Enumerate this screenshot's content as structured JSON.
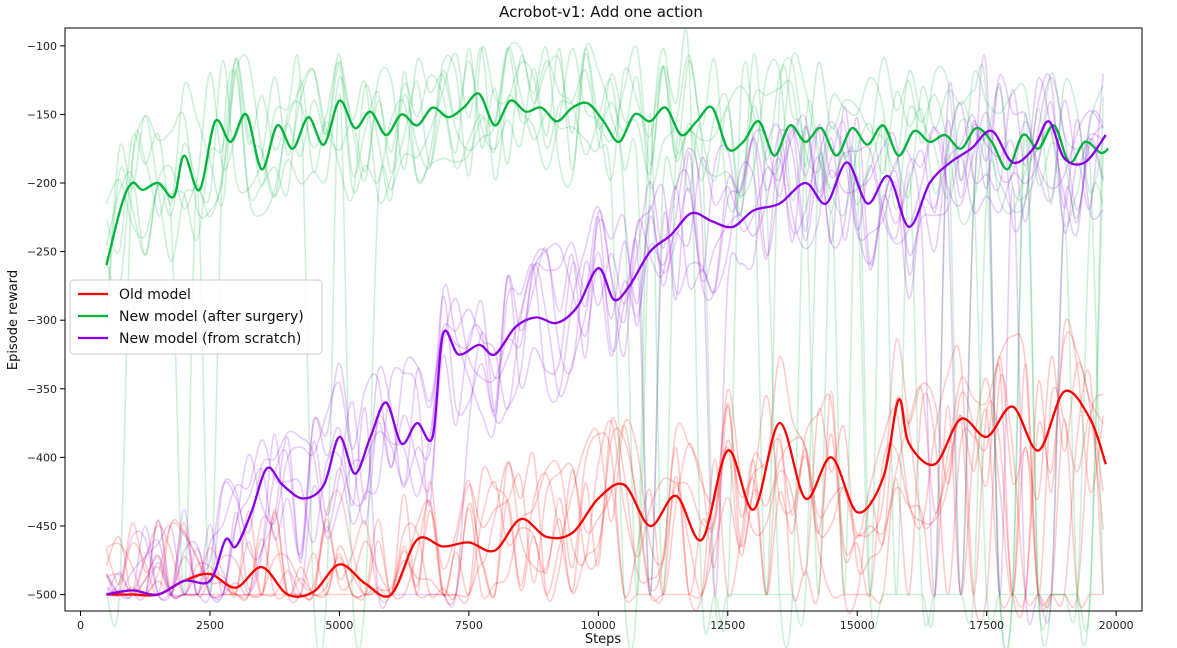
{
  "chart_data": {
    "type": "line",
    "title": "Acrobot-v1: Add one action",
    "xlabel": "Steps",
    "ylabel": "Episode reward",
    "xlim": [
      -300,
      20500
    ],
    "ylim": [
      -512,
      -87
    ],
    "xticks": [
      0,
      2500,
      5000,
      7500,
      10000,
      12500,
      15000,
      17500,
      20000
    ],
    "yticks": [
      -100,
      -150,
      -200,
      -250,
      -300,
      -350,
      -400,
      -450,
      -500
    ],
    "grid": false,
    "legend_position": "center-left",
    "series": [
      {
        "name": "Old model",
        "color": "#ff0000",
        "x": [
          500,
          1000,
          1500,
          2000,
          2500,
          3000,
          3500,
          4000,
          4500,
          5000,
          5500,
          6000,
          6500,
          7000,
          7500,
          8000,
          8500,
          9000,
          9500,
          10000,
          10500,
          11000,
          11500,
          12000,
          12500,
          13000,
          13500,
          14000,
          14500,
          15000,
          15500,
          15800,
          16000,
          16500,
          17000,
          17500,
          18000,
          18500,
          19000,
          19500,
          19800
        ],
        "values": [
          -500,
          -500,
          -500,
          -490,
          -485,
          -495,
          -480,
          -500,
          -498,
          -478,
          -492,
          -500,
          -460,
          -465,
          -462,
          -468,
          -445,
          -458,
          -455,
          -430,
          -420,
          -450,
          -428,
          -460,
          -395,
          -438,
          -375,
          -430,
          -400,
          -440,
          -415,
          -358,
          -390,
          -405,
          -372,
          -385,
          -363,
          -395,
          -352,
          -372,
          -405
        ]
      },
      {
        "name": "New model (after surgery)",
        "color": "#00b33c",
        "x": [
          500,
          800,
          1000,
          1200,
          1500,
          1800,
          2000,
          2300,
          2600,
          2900,
          3200,
          3500,
          3800,
          4100,
          4400,
          4700,
          5000,
          5300,
          5600,
          5900,
          6200,
          6500,
          6800,
          7100,
          7400,
          7700,
          8000,
          8300,
          8600,
          8900,
          9200,
          9500,
          9800,
          10100,
          10400,
          10700,
          11000,
          11300,
          11600,
          11900,
          12200,
          12500,
          12800,
          13100,
          13400,
          13700,
          14000,
          14300,
          14600,
          14900,
          15200,
          15500,
          15800,
          16100,
          16400,
          16700,
          17000,
          17300,
          17600,
          17900,
          18200,
          18500,
          18800,
          19100,
          19400,
          19700,
          19850
        ],
        "values": [
          -260,
          -215,
          -200,
          -205,
          -200,
          -210,
          -180,
          -205,
          -155,
          -170,
          -150,
          -190,
          -158,
          -175,
          -152,
          -172,
          -140,
          -160,
          -148,
          -165,
          -150,
          -158,
          -145,
          -152,
          -145,
          -135,
          -158,
          -140,
          -148,
          -145,
          -155,
          -145,
          -142,
          -155,
          -170,
          -150,
          -155,
          -145,
          -165,
          -155,
          -145,
          -175,
          -170,
          -155,
          -180,
          -158,
          -170,
          -160,
          -180,
          -160,
          -172,
          -158,
          -180,
          -162,
          -170,
          -165,
          -175,
          -160,
          -170,
          -190,
          -165,
          -175,
          -158,
          -185,
          -170,
          -178,
          -175
        ]
      },
      {
        "name": "New model (from scratch)",
        "color": "#8a00e6",
        "x": [
          500,
          1000,
          1500,
          2000,
          2500,
          2800,
          3000,
          3300,
          3600,
          3900,
          4300,
          4700,
          5000,
          5300,
          5600,
          5900,
          6200,
          6500,
          6800,
          7000,
          7300,
          7700,
          8000,
          8400,
          8800,
          9200,
          9600,
          10000,
          10300,
          10600,
          11000,
          11400,
          11800,
          12200,
          12600,
          13000,
          13500,
          14000,
          14400,
          14800,
          15200,
          15600,
          16000,
          16400,
          16800,
          17200,
          17600,
          18000,
          18400,
          18700,
          19000,
          19400,
          19800
        ],
        "values": [
          -500,
          -497,
          -500,
          -490,
          -490,
          -460,
          -465,
          -440,
          -408,
          -420,
          -430,
          -420,
          -385,
          -412,
          -385,
          -360,
          -390,
          -375,
          -385,
          -310,
          -325,
          -318,
          -325,
          -305,
          -298,
          -302,
          -290,
          -262,
          -285,
          -275,
          -250,
          -238,
          -222,
          -228,
          -232,
          -220,
          -215,
          -200,
          -215,
          -185,
          -215,
          -195,
          -232,
          -200,
          -185,
          -175,
          -162,
          -185,
          -175,
          -155,
          -182,
          -185,
          -165
        ]
      }
    ]
  }
}
